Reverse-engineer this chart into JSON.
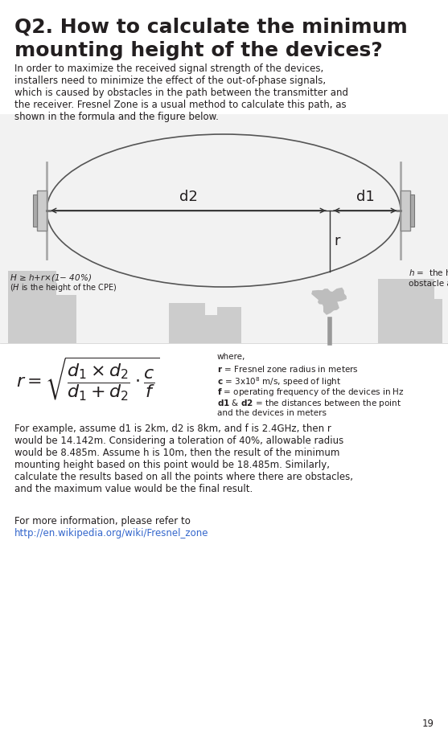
{
  "title": "Q2. How to calculate the minimum\nmounting height of the devices?",
  "intro_text": "In order to maximize the received signal strength of the devices,\ninstallers need to minimize the effect of the out-of-phase signals,\nwhich is caused by obstacles in the path between the transmitter and\nthe receiver. Fresnel Zone is a usual method to calculate this path, as\nshown in the formula and the figure below.",
  "formula_text": "$r = \\sqrt{\\dfrac{d_1 \\times d_2}{d_1 + d_2} \\cdot \\dfrac{c}{f}}$",
  "where_text": "where,\n$\\mathbf{r}$ = Fresnel zone radius in meters\n$\\mathbf{c}$ = 3x10$^8$ m/s, speed of light\n$\\mathbf{f}$ = operating frequency of the devices in Hz\n$\\mathbf{d1}$ $\\mathbf{\\&}$ $\\mathbf{d2}$ = the distances between the point\nand the devices in meters",
  "example_text": "For example, assume d1 is 2km, d2 is 8km, and f is 2.4GHz, then r\nwould be 14.142m. Considering a toleration of 40%, allowable radius\nwould be 8.485m. Assume h is 10m, then the result of the minimum\nmounting height based on this point would be 18.485m. Similarly,\ncalculate the results based on all the points where there are obstacles,\nand the maximum value would be the final result.",
  "ref_text": "For more information, please refer to\nhttp://en.wikipedia.org/wiki/Fresnel_zone",
  "page_num": "19",
  "bg_color": "#ffffff",
  "text_color": "#231f20",
  "gray_color": "#c8c8c8",
  "light_gray": "#e0e0e0",
  "diagram_bg": "#f0f0f0"
}
